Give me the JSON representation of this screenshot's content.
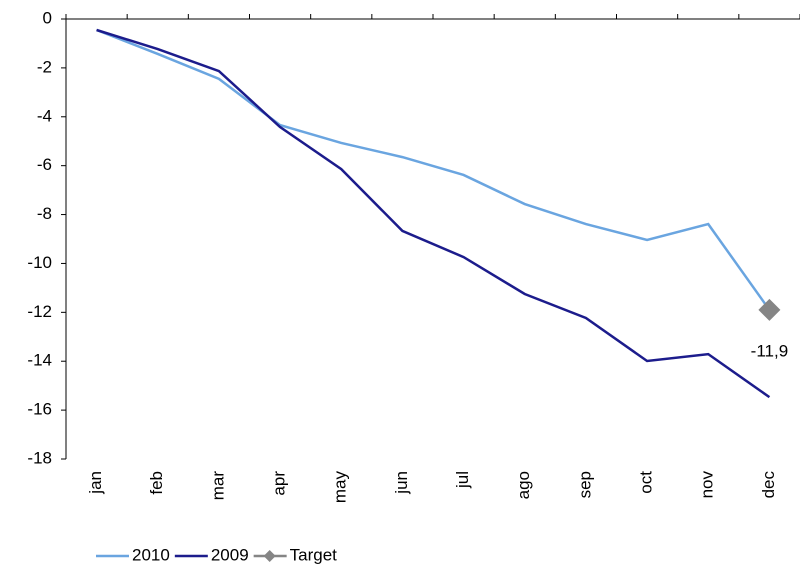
{
  "chart_data": {
    "type": "line",
    "categories": [
      "jan",
      "feb",
      "mar",
      "apr",
      "may",
      "jun",
      "jul",
      "ago",
      "sep",
      "oct",
      "nov",
      "dec"
    ],
    "series": [
      {
        "name": "2010",
        "color": "#6aa5e0",
        "values": [
          -0.45,
          -1.43,
          -2.45,
          -4.34,
          -5.07,
          -5.65,
          -6.38,
          -7.57,
          -8.39,
          -9.04,
          -8.39,
          -11.9
        ]
      },
      {
        "name": "2009",
        "color": "#1c1c8c",
        "values": [
          -0.45,
          -1.23,
          -2.13,
          -4.42,
          -6.14,
          -8.67,
          -9.74,
          -11.25,
          -12.23,
          -13.99,
          -13.71,
          -15.47
        ]
      },
      {
        "name": "Target",
        "color": "#858585",
        "marker": "diamond",
        "values": [
          null,
          null,
          null,
          null,
          null,
          null,
          null,
          null,
          null,
          null,
          null,
          -11.9
        ],
        "value_labels": [
          null,
          null,
          null,
          null,
          null,
          null,
          null,
          null,
          null,
          null,
          null,
          "-11,9"
        ]
      }
    ],
    "ylim": [
      -18,
      0
    ],
    "yticks": [
      0,
      -2,
      -4,
      -6,
      -8,
      -10,
      -12,
      -14,
      -16,
      -18
    ],
    "grid": false
  }
}
